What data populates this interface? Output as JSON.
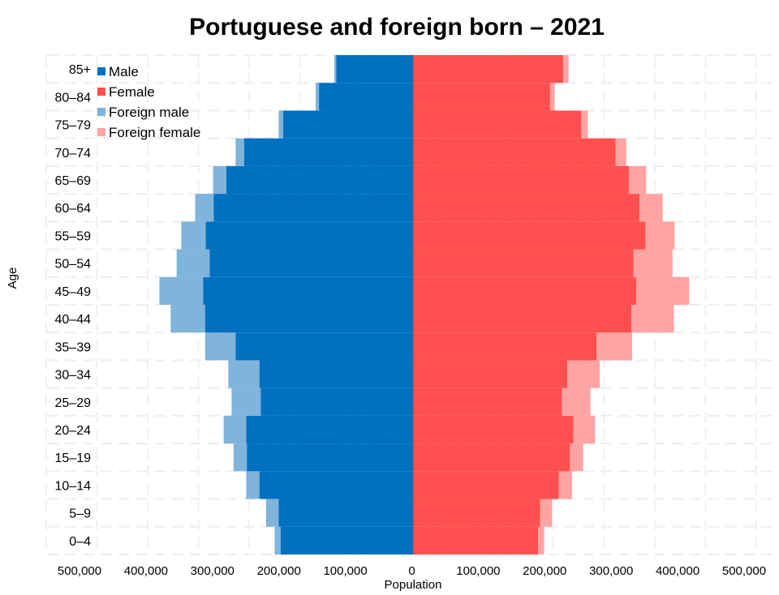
{
  "chart_data": {
    "type": "bar",
    "orientation": "horizontal-pyramid",
    "title": "Portuguese and foreign born – 2021",
    "xlabel": "Population",
    "ylabel": "Age",
    "xlim": [
      -500000,
      500000
    ],
    "x_ticks": [
      "500,000",
      "400,000",
      "300,000",
      "200,000",
      "100,000",
      "0",
      "100,000",
      "200,000",
      "300,000",
      "400,000",
      "500,000"
    ],
    "categories": [
      "0–4",
      "5–9",
      "10–14",
      "15–19",
      "20–24",
      "25–29",
      "30–34",
      "35–39",
      "40–44",
      "45–49",
      "50–54",
      "55–59",
      "60–64",
      "65–69",
      "70–74",
      "75–79",
      "80–84",
      "85+"
    ],
    "stacked": true,
    "grid": true,
    "legend_position": "top-left",
    "series": [
      {
        "name": "Male",
        "side": "left",
        "color": "#0070c0",
        "values": [
          200000,
          203000,
          232000,
          251000,
          252000,
          230000,
          232000,
          268000,
          314000,
          317000,
          307000,
          313000,
          301000,
          282000,
          255000,
          196000,
          142000,
          116000
        ]
      },
      {
        "name": "Female",
        "side": "right",
        "color": "#ff4f4f",
        "values": [
          189000,
          192000,
          220000,
          237000,
          242000,
          225000,
          233000,
          277000,
          330000,
          337000,
          333000,
          351000,
          342000,
          326000,
          306000,
          254000,
          207000,
          227000
        ]
      },
      {
        "name": "Foreign male",
        "side": "left",
        "color": "#7fb4dc",
        "values": [
          9000,
          19000,
          20000,
          20000,
          34000,
          44000,
          47000,
          46000,
          52000,
          66000,
          50000,
          37000,
          28000,
          20000,
          13000,
          7000,
          5000,
          3000
        ]
      },
      {
        "name": "Foreign female",
        "side": "right",
        "color": "#ffa3a3",
        "values": [
          9000,
          18000,
          20000,
          20000,
          33000,
          43000,
          49000,
          54000,
          64000,
          80000,
          59000,
          44000,
          35000,
          26000,
          16000,
          10000,
          7000,
          8000
        ]
      }
    ]
  }
}
